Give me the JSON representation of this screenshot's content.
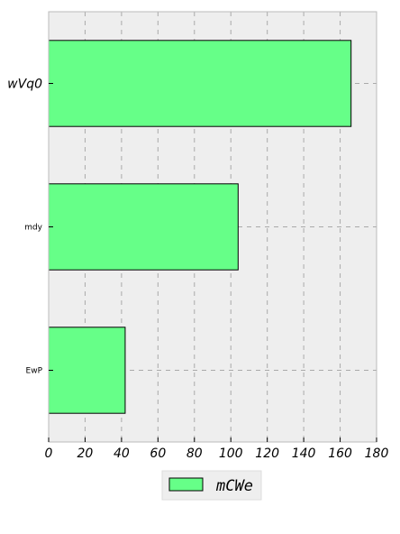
{
  "chart_data": {
    "type": "bar",
    "orientation": "horizontal",
    "categories": [
      "wVq0",
      "mdy",
      "EwP"
    ],
    "series": [
      {
        "name": "mCWe",
        "values": [
          166,
          104,
          42
        ]
      }
    ],
    "xlim": [
      0,
      180
    ],
    "xticks": [
      "0",
      "20",
      "40",
      "60",
      "80",
      "100",
      "120",
      "140",
      "160",
      "180"
    ],
    "grid": true,
    "legend_position": "bottom-center",
    "colors": {
      "bar": "#66ff88",
      "bar_edge": "#000000",
      "plot_bg": "#eeeeee",
      "grid": "#aaaaaa"
    }
  }
}
